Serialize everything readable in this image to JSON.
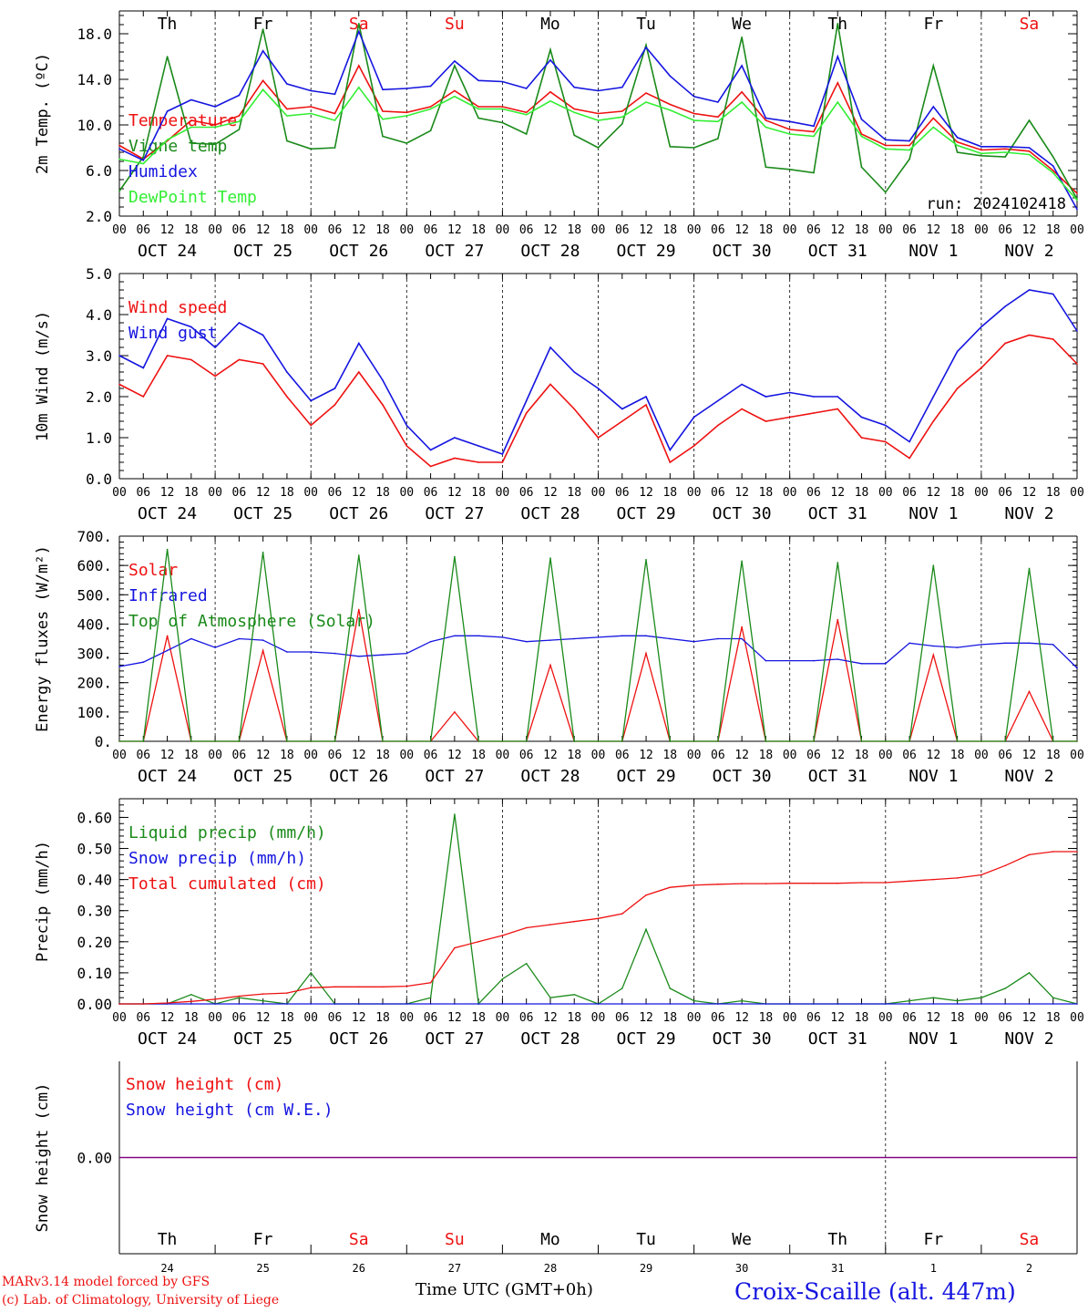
{
  "colors": {
    "red": "#ee1111",
    "green": "#1a8a1a",
    "blue": "#1515e0",
    "lightgreen": "#33ee33",
    "purple": "#800080",
    "axis": "#000000"
  },
  "footer": {
    "credit_line1": "MARv3.14 model forced by GFS",
    "credit_line2": "(c) Lab. of Climatology, University of Liege",
    "xlabel": "Time UTC (GMT+0h)",
    "station": "Croix-Scaille (alt. 447m)"
  },
  "chart_data": [
    {
      "type": "line",
      "ylabel": "2m Temp. (ºC)",
      "ylim": [
        2.0,
        20.0
      ],
      "yticks": [
        "2.0",
        "6.0",
        "10.0",
        "14.0",
        "18.0"
      ],
      "annotation": "run: 2024102418",
      "weekday_labels": [
        {
          "label": "Th",
          "color": "#000000"
        },
        {
          "label": "Fr",
          "color": "#000000"
        },
        {
          "label": "Sa",
          "color": "#ee1111"
        },
        {
          "label": "Su",
          "color": "#ee1111"
        },
        {
          "label": "Mo",
          "color": "#000000"
        },
        {
          "label": "Tu",
          "color": "#000000"
        },
        {
          "label": "We",
          "color": "#000000"
        },
        {
          "label": "Th",
          "color": "#000000"
        },
        {
          "label": "Fr",
          "color": "#000000"
        },
        {
          "label": "Sa",
          "color": "#ee1111"
        }
      ],
      "hour_ticks": [
        "00",
        "06",
        "12",
        "18"
      ],
      "date_labels": [
        "OCT 24",
        "OCT 25",
        "OCT 26",
        "OCT 27",
        "OCT 28",
        "OCT 29",
        "OCT 30",
        "OCT 31",
        "NOV  1",
        "NOV  2"
      ],
      "x_hours": [
        0,
        6,
        12,
        18,
        24,
        30,
        36,
        42,
        48,
        54,
        60,
        66,
        72,
        78,
        84,
        90,
        96,
        102,
        108,
        114,
        120,
        126,
        132,
        138,
        144,
        150,
        156,
        162,
        168,
        174,
        180,
        186,
        192,
        198,
        204,
        210,
        216,
        222,
        228,
        234,
        240
      ],
      "series": [
        {
          "name": "Temperature",
          "color": "#ee1111",
          "values": [
            8.2,
            7.0,
            8.6,
            10.4,
            10.0,
            10.8,
            13.9,
            11.4,
            11.6,
            11.0,
            15.2,
            11.2,
            11.1,
            11.6,
            13.0,
            11.6,
            11.6,
            11.1,
            12.9,
            11.4,
            11.0,
            11.2,
            12.8,
            11.8,
            11.0,
            10.7,
            12.9,
            10.4,
            9.6,
            9.4,
            13.7,
            9.2,
            8.2,
            8.2,
            10.6,
            8.5,
            7.8,
            7.9,
            7.7,
            6.0,
            4.0
          ]
        },
        {
          "name": "Vigne temp",
          "color": "#1a8a1a",
          "values": [
            4.2,
            7.2,
            16.0,
            8.4,
            8.3,
            9.6,
            18.4,
            8.6,
            7.9,
            8.0,
            18.9,
            9.0,
            8.4,
            9.5,
            15.2,
            10.6,
            10.2,
            9.2,
            16.6,
            9.1,
            8.0,
            10.1,
            17.0,
            8.1,
            8.0,
            8.8,
            17.7,
            6.3,
            6.1,
            5.8,
            18.9,
            6.3,
            4.1,
            7.0,
            15.2,
            7.6,
            7.3,
            7.2,
            10.4,
            7.2,
            3.5
          ]
        },
        {
          "name": "Humidex",
          "color": "#1515e0",
          "values": [
            7.9,
            6.9,
            11.2,
            12.2,
            11.6,
            12.6,
            16.5,
            13.6,
            13.0,
            12.7,
            18.2,
            13.1,
            13.2,
            13.4,
            15.6,
            13.9,
            13.8,
            13.2,
            15.7,
            13.3,
            13.0,
            13.3,
            16.8,
            14.3,
            12.5,
            12.0,
            15.2,
            10.6,
            10.3,
            9.9,
            16.0,
            10.5,
            8.7,
            8.6,
            11.6,
            8.9,
            8.1,
            8.1,
            8.0,
            6.4,
            2.6
          ]
        },
        {
          "name": "DewPoint Temp",
          "color": "#33ee33",
          "values": [
            7.0,
            6.6,
            8.7,
            9.8,
            9.8,
            10.3,
            13.1,
            10.8,
            11.0,
            10.4,
            13.3,
            10.5,
            10.8,
            11.4,
            12.5,
            11.4,
            11.4,
            10.9,
            12.1,
            11.1,
            10.4,
            10.7,
            12.0,
            11.3,
            10.4,
            10.3,
            12.0,
            9.8,
            9.2,
            9.0,
            12.0,
            9.0,
            7.9,
            7.8,
            9.8,
            8.2,
            7.5,
            7.6,
            7.4,
            5.8,
            3.4
          ]
        }
      ]
    },
    {
      "type": "line",
      "ylabel": "10m Wind (m/s)",
      "ylim": [
        0.0,
        5.0
      ],
      "yticks": [
        "0.0",
        "1.0",
        "2.0",
        "3.0",
        "4.0",
        "5.0"
      ],
      "hour_ticks": [
        "00",
        "06",
        "12",
        "18"
      ],
      "date_labels": [
        "OCT 24",
        "OCT 25",
        "OCT 26",
        "OCT 27",
        "OCT 28",
        "OCT 29",
        "OCT 30",
        "OCT 31",
        "NOV  1",
        "NOV  2"
      ],
      "x_hours": [
        0,
        6,
        12,
        18,
        24,
        30,
        36,
        42,
        48,
        54,
        60,
        66,
        72,
        78,
        84,
        90,
        96,
        102,
        108,
        114,
        120,
        126,
        132,
        138,
        144,
        150,
        156,
        162,
        168,
        174,
        180,
        186,
        192,
        198,
        204,
        210,
        216,
        222,
        228,
        234,
        240
      ],
      "series": [
        {
          "name": "Wind speed",
          "color": "#ee1111",
          "values": [
            2.3,
            2.0,
            3.0,
            2.9,
            2.5,
            2.9,
            2.8,
            2.0,
            1.3,
            1.8,
            2.6,
            1.8,
            0.8,
            0.3,
            0.5,
            0.4,
            0.4,
            1.6,
            2.3,
            1.7,
            1.0,
            1.4,
            1.8,
            0.4,
            0.8,
            1.3,
            1.7,
            1.4,
            1.5,
            1.6,
            1.7,
            1.0,
            0.9,
            0.5,
            1.4,
            2.2,
            2.7,
            3.3,
            3.5,
            3.4,
            2.8
          ]
        },
        {
          "name": "Wind gust",
          "color": "#1515e0",
          "values": [
            3.0,
            2.7,
            3.9,
            3.7,
            3.2,
            3.8,
            3.5,
            2.6,
            1.9,
            2.2,
            3.3,
            2.4,
            1.3,
            0.7,
            1.0,
            0.8,
            0.6,
            1.9,
            3.2,
            2.6,
            2.2,
            1.7,
            2.0,
            0.7,
            1.5,
            1.9,
            2.3,
            2.0,
            2.1,
            2.0,
            2.0,
            1.5,
            1.3,
            0.9,
            2.0,
            3.1,
            3.7,
            4.2,
            4.6,
            4.5,
            3.6
          ]
        }
      ]
    },
    {
      "type": "line",
      "ylabel": "Energy fluxes (W/m²)",
      "ylim": [
        0,
        700
      ],
      "yticks": [
        "0.",
        "100.",
        "200.",
        "300.",
        "400.",
        "500.",
        "600.",
        "700."
      ],
      "hour_ticks": [
        "00",
        "06",
        "12",
        "18"
      ],
      "date_labels": [
        "OCT 24",
        "OCT 25",
        "OCT 26",
        "OCT 27",
        "OCT 28",
        "OCT 29",
        "OCT 30",
        "OCT 31",
        "NOV  1",
        "NOV  2"
      ],
      "x_hours": [
        0,
        6,
        12,
        18,
        24,
        30,
        36,
        42,
        48,
        54,
        60,
        66,
        72,
        78,
        84,
        90,
        96,
        102,
        108,
        114,
        120,
        126,
        132,
        138,
        144,
        150,
        156,
        162,
        168,
        174,
        180,
        186,
        192,
        198,
        204,
        210,
        216,
        222,
        228,
        234,
        240
      ],
      "series": [
        {
          "name": "Solar",
          "color": "#ee1111",
          "values": [
            0,
            0,
            360,
            0,
            0,
            0,
            310,
            0,
            0,
            0,
            450,
            0,
            0,
            0,
            100,
            0,
            0,
            0,
            260,
            0,
            0,
            0,
            300,
            0,
            0,
            0,
            390,
            0,
            0,
            0,
            415,
            0,
            0,
            0,
            295,
            0,
            0,
            0,
            170,
            0,
            0
          ]
        },
        {
          "name": "Infrared",
          "color": "#1515e0",
          "values": [
            255,
            270,
            310,
            350,
            320,
            350,
            345,
            305,
            305,
            300,
            290,
            295,
            300,
            340,
            360,
            360,
            355,
            340,
            345,
            350,
            355,
            360,
            360,
            350,
            340,
            350,
            350,
            275,
            275,
            275,
            280,
            265,
            265,
            335,
            325,
            320,
            330,
            335,
            335,
            330,
            250
          ]
        },
        {
          "name": "Top of Atmosphere (Solar)",
          "color": "#1a8a1a",
          "values": [
            0,
            0,
            655,
            0,
            0,
            0,
            645,
            0,
            0,
            0,
            635,
            0,
            0,
            0,
            630,
            0,
            0,
            0,
            625,
            0,
            0,
            0,
            620,
            0,
            0,
            0,
            615,
            0,
            0,
            0,
            610,
            0,
            0,
            0,
            600,
            0,
            0,
            0,
            590,
            0,
            0
          ]
        }
      ]
    },
    {
      "type": "line",
      "ylabel": "Precip (mm/h)",
      "ylim": [
        0.0,
        0.66
      ],
      "yticks": [
        "0.00",
        "0.10",
        "0.20",
        "0.30",
        "0.40",
        "0.50",
        "0.60"
      ],
      "hour_ticks": [
        "00",
        "06",
        "12",
        "18"
      ],
      "date_labels": [
        "OCT 24",
        "OCT 25",
        "OCT 26",
        "OCT 27",
        "OCT 28",
        "OCT 29",
        "OCT 30",
        "OCT 31",
        "NOV  1",
        "NOV  2"
      ],
      "x_hours": [
        0,
        6,
        12,
        18,
        24,
        30,
        36,
        42,
        48,
        54,
        60,
        66,
        72,
        78,
        84,
        90,
        96,
        102,
        108,
        114,
        120,
        126,
        132,
        138,
        144,
        150,
        156,
        162,
        168,
        174,
        180,
        186,
        192,
        198,
        204,
        210,
        216,
        222,
        228,
        234,
        240
      ],
      "series": [
        {
          "name": "Liquid precip (mm/h)",
          "color": "#1a8a1a",
          "values": [
            0,
            0,
            0,
            0.03,
            0,
            0.02,
            0.01,
            0,
            0.1,
            0,
            0,
            0,
            0,
            0.02,
            0.61,
            0,
            0.08,
            0.13,
            0.02,
            0.03,
            0,
            0.05,
            0.24,
            0.05,
            0.01,
            0,
            0.01,
            0,
            0,
            0,
            0,
            0,
            0,
            0.01,
            0.02,
            0.01,
            0.02,
            0.05,
            0.1,
            0.02,
            0
          ]
        },
        {
          "name": "Snow precip (mm/h)",
          "color": "#1515e0",
          "values": [
            0,
            0,
            0,
            0,
            0,
            0,
            0,
            0,
            0,
            0,
            0,
            0,
            0,
            0,
            0,
            0,
            0,
            0,
            0,
            0,
            0,
            0,
            0,
            0,
            0,
            0,
            0,
            0,
            0,
            0,
            0,
            0,
            0,
            0,
            0,
            0,
            0,
            0,
            0,
            0,
            0
          ]
        },
        {
          "name": "Total cumulated (cm)",
          "color": "#ee1111",
          "values": [
            0.0,
            0.0,
            0.003,
            0.008,
            0.015,
            0.025,
            0.032,
            0.035,
            0.052,
            0.055,
            0.055,
            0.055,
            0.057,
            0.068,
            0.18,
            0.2,
            0.22,
            0.245,
            0.255,
            0.265,
            0.275,
            0.29,
            0.35,
            0.375,
            0.382,
            0.385,
            0.387,
            0.387,
            0.388,
            0.388,
            0.388,
            0.39,
            0.39,
            0.395,
            0.4,
            0.405,
            0.415,
            0.445,
            0.48,
            0.49,
            0.49
          ]
        }
      ]
    },
    {
      "type": "line",
      "ylabel": "Snow height (cm)",
      "ylim": [
        -1.0,
        1.0
      ],
      "yticks": [
        "0.00"
      ],
      "weekday_labels": [
        {
          "label": "Th",
          "color": "#000000"
        },
        {
          "label": "Fr",
          "color": "#000000"
        },
        {
          "label": "Sa",
          "color": "#ee1111"
        },
        {
          "label": "Su",
          "color": "#ee1111"
        },
        {
          "label": "Mo",
          "color": "#000000"
        },
        {
          "label": "Tu",
          "color": "#000000"
        },
        {
          "label": "We",
          "color": "#000000"
        },
        {
          "label": "Th",
          "color": "#000000"
        },
        {
          "label": "Fr",
          "color": "#000000"
        },
        {
          "label": "Sa",
          "color": "#ee1111"
        }
      ],
      "day_numbers": [
        "24",
        "25",
        "26",
        "27",
        "28",
        "29",
        "30",
        "31",
        "1",
        "2"
      ],
      "x_hours": [
        0,
        240
      ],
      "series": [
        {
          "name": "Snow height (cm)",
          "color": "#ee1111",
          "values": [
            0,
            0
          ]
        },
        {
          "name": "Snow height (cm W.E.)",
          "color": "#1515e0",
          "values": [
            0,
            0
          ]
        }
      ]
    }
  ]
}
